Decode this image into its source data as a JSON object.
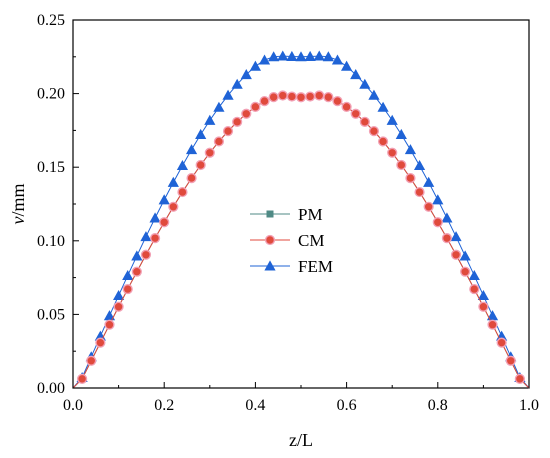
{
  "chart_data": {
    "type": "line",
    "xlabel": "z/L",
    "ylabel_italic": "v",
    "ylabel_unit": "/mm",
    "xlim": [
      0.0,
      1.0
    ],
    "ylim": [
      0.0,
      0.25
    ],
    "x_ticks": [
      "0.0",
      "0.2",
      "0.4",
      "0.6",
      "0.8",
      "1.0"
    ],
    "x_tick_values": [
      0.0,
      0.2,
      0.4,
      0.6,
      0.8,
      1.0
    ],
    "y_ticks": [
      "0.00",
      "0.05",
      "0.10",
      "0.15",
      "0.20",
      "0.25"
    ],
    "y_tick_values": [
      0.0,
      0.05,
      0.1,
      0.15,
      0.2,
      0.25
    ],
    "grid": false,
    "legend_position": "center",
    "x": [
      0.02,
      0.04,
      0.06,
      0.08,
      0.1,
      0.12,
      0.14,
      0.16,
      0.18,
      0.2,
      0.22,
      0.24,
      0.26,
      0.28,
      0.3,
      0.32,
      0.34,
      0.36,
      0.38,
      0.4,
      0.42,
      0.44,
      0.46,
      0.48,
      0.5,
      0.52,
      0.54,
      0.56,
      0.58,
      0.6,
      0.62,
      0.64,
      0.66,
      0.68,
      0.7,
      0.72,
      0.74,
      0.76,
      0.78,
      0.8,
      0.82,
      0.84,
      0.86,
      0.88,
      0.9,
      0.92,
      0.94,
      0.96,
      0.98
    ],
    "series": [
      {
        "name": "PM",
        "marker": "square",
        "color": "#4f8a85",
        "values": [
          0.0062,
          0.0185,
          0.0308,
          0.043,
          0.0552,
          0.0672,
          0.079,
          0.0905,
          0.1018,
          0.1126,
          0.1231,
          0.1331,
          0.1426,
          0.1515,
          0.1598,
          0.1675,
          0.1745,
          0.1808,
          0.1863,
          0.191,
          0.1949,
          0.1976,
          0.1987,
          0.198,
          0.1975,
          0.198,
          0.1987,
          0.1976,
          0.1949,
          0.191,
          0.1863,
          0.1808,
          0.1745,
          0.1675,
          0.1598,
          0.1515,
          0.1426,
          0.1331,
          0.1231,
          0.1126,
          0.1018,
          0.0905,
          0.079,
          0.0672,
          0.0552,
          0.043,
          0.0308,
          0.0185,
          0.0062
        ]
      },
      {
        "name": "CM",
        "marker": "circle",
        "color": "#e04a3c",
        "values": [
          0.0062,
          0.0185,
          0.0308,
          0.043,
          0.0552,
          0.0672,
          0.079,
          0.0905,
          0.1018,
          0.1126,
          0.1231,
          0.1331,
          0.1426,
          0.1515,
          0.1598,
          0.1675,
          0.1745,
          0.1808,
          0.1863,
          0.191,
          0.1949,
          0.1976,
          0.1987,
          0.198,
          0.1975,
          0.198,
          0.1987,
          0.1976,
          0.1949,
          0.191,
          0.1863,
          0.1808,
          0.1745,
          0.1675,
          0.1598,
          0.1515,
          0.1426,
          0.1331,
          0.1231,
          0.1126,
          0.1018,
          0.0905,
          0.079,
          0.0672,
          0.0552,
          0.043,
          0.0308,
          0.0185,
          0.0062
        ]
      },
      {
        "name": "FEM",
        "marker": "triangle",
        "color": "#1f63d6",
        "values": [
          0.0071,
          0.0212,
          0.0352,
          0.0491,
          0.0628,
          0.0764,
          0.0897,
          0.1028,
          0.1155,
          0.1278,
          0.1397,
          0.1511,
          0.1619,
          0.1722,
          0.1818,
          0.1907,
          0.1989,
          0.2063,
          0.2129,
          0.2186,
          0.2228,
          0.225,
          0.2255,
          0.2252,
          0.225,
          0.2252,
          0.2255,
          0.225,
          0.2228,
          0.2186,
          0.2129,
          0.2063,
          0.1989,
          0.1907,
          0.1818,
          0.1722,
          0.1619,
          0.1511,
          0.1397,
          0.1278,
          0.1155,
          0.1028,
          0.0897,
          0.0764,
          0.0628,
          0.0491,
          0.0352,
          0.0212,
          0.0071
        ]
      }
    ]
  }
}
